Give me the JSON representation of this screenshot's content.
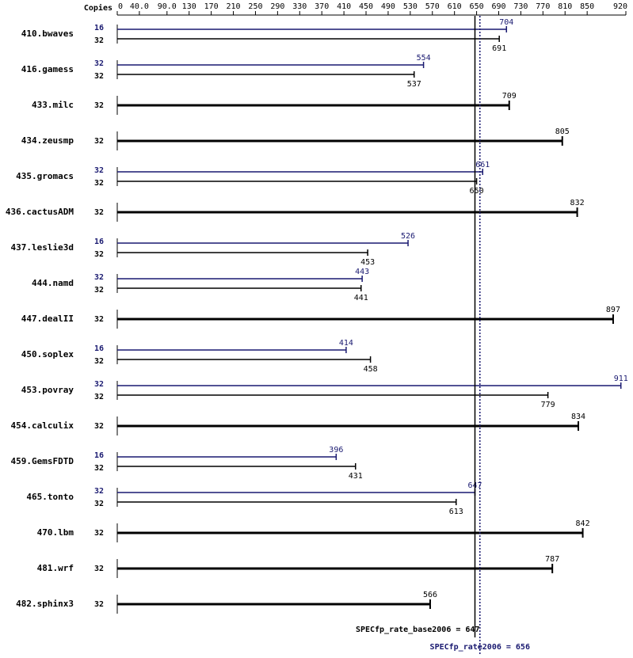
{
  "chart_data": {
    "type": "spec-rate",
    "copies_label": "Copies",
    "categories": [
      "410.bwaves",
      "416.gamess",
      "433.milc",
      "434.zeusmp",
      "435.gromacs",
      "436.cactusADM",
      "437.leslie3d",
      "444.namd",
      "447.dealII",
      "450.soplex",
      "453.povray",
      "454.calculix",
      "459.GemsFDTD",
      "465.tonto",
      "470.lbm",
      "481.wrf",
      "482.sphinx3"
    ],
    "series": [
      {
        "name": "SPECfp_rate2006",
        "color": "#191970",
        "copies": [
          "16",
          "32",
          null,
          null,
          "32",
          null,
          "16",
          "32",
          null,
          "16",
          "32",
          null,
          "16",
          "32",
          null,
          null,
          null
        ],
        "values": [
          704,
          554,
          null,
          null,
          661,
          null,
          526,
          443,
          null,
          414,
          911,
          null,
          396,
          647,
          null,
          null,
          null
        ]
      },
      {
        "name": "SPECfp_rate_base2006",
        "color": "#000000",
        "copies": [
          "32",
          "32",
          "32",
          "32",
          "32",
          "32",
          "32",
          "32",
          "32",
          "32",
          "32",
          "32",
          "32",
          "32",
          "32",
          "32",
          "32"
        ],
        "values": [
          691,
          537,
          709,
          805,
          650,
          832,
          453,
          441,
          897,
          458,
          779,
          834,
          431,
          613,
          842,
          787,
          566
        ]
      }
    ],
    "reference_lines": [
      {
        "label": "SPECfp_rate_base2006 = 647",
        "value": 647,
        "color": "#000000",
        "style": "solid"
      },
      {
        "label": "SPECfp_rate2006 = 656",
        "value": 656,
        "color": "#191970",
        "style": "dotted"
      }
    ],
    "xlim": [
      0,
      920
    ],
    "xticks": [
      0,
      {
        "value": 40,
        "label": "40.0"
      },
      {
        "value": 90,
        "label": "90.0"
      },
      130,
      170,
      210,
      250,
      290,
      330,
      370,
      410,
      450,
      490,
      530,
      570,
      610,
      650,
      690,
      730,
      770,
      810,
      850,
      920
    ]
  }
}
